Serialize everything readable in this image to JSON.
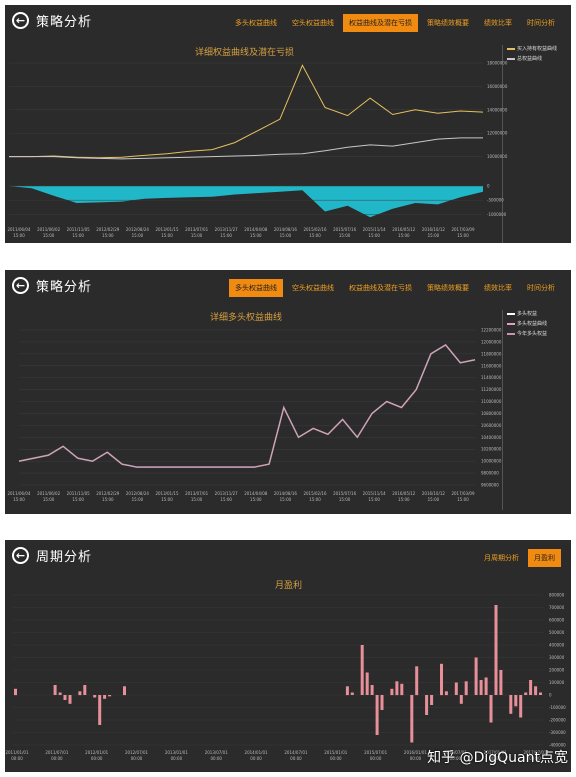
{
  "panel1": {
    "title": "策略分析",
    "tabs": [
      "多头权益曲线",
      "空头权益曲线",
      "权益曲线及潜在亏损",
      "策略绩效概要",
      "绩效比率",
      "时间分析"
    ],
    "active_tab_index": 2,
    "chart_title": "详细权益曲线及潜在亏损",
    "legend": [
      "买入持有权益曲线",
      "总权益曲线"
    ],
    "colors": {
      "line1": "#e8c060",
      "line2": "#c8c8c8",
      "area": "#20b8c8"
    }
  },
  "panel2": {
    "title": "策略分析",
    "tabs": [
      "多头权益曲线",
      "空头权益曲线",
      "权益曲线及潜在亏损",
      "策略绩效概要",
      "绩效比率",
      "时间分析"
    ],
    "active_tab_index": 0,
    "chart_title": "详细多头权益曲线",
    "legend": [
      "多头权益",
      "多头权益曲线",
      "今年多头权益"
    ],
    "colors": {
      "line1": "#e0a0c0",
      "line2": "#d090b0"
    }
  },
  "panel3": {
    "title": "周期分析",
    "tabs": [
      "月周期分析",
      "月盈利"
    ],
    "active_tab_index": 1,
    "chart_title": "月盈利",
    "colors": {
      "bar": "#e8909a"
    }
  },
  "chart_data": [
    {
      "type": "line",
      "title": "详细权益曲线及潜在亏损",
      "x_ticks": [
        "2011/06/04 15:00",
        "2011/06/02 15:00",
        "2011/11/05 15:00",
        "2012/02/29 15:00",
        "2012/08/24 15:00",
        "2013/01/15 15:00",
        "2013/07/01 15:00",
        "2013/11/27 15:00",
        "2014/04/08 15:00",
        "2014/08/16 15:00",
        "2015/02/16 15:00",
        "2015/07/16 15:00",
        "2015/11/14 15:00",
        "2016/05/12 15:00",
        "2016/10/12 15:00",
        "2017/03/09 15:00"
      ],
      "y_ticks": [
        "18000000",
        "16000000",
        "14000000",
        "12000000",
        "10000000",
        "0",
        "-500000",
        "-1000000"
      ],
      "series": [
        {
          "name": "买入持有权益曲线",
          "values": [
            10000000,
            10000000,
            10050000,
            9950000,
            9900000,
            9950000,
            10100000,
            10250000,
            10450000,
            10600000,
            11200000,
            12200000,
            13200000,
            17800000,
            14200000,
            13500000,
            15000000,
            13600000,
            14000000,
            13700000,
            13900000,
            13800000
          ]
        },
        {
          "name": "总权益曲线",
          "values": [
            10000000,
            10000000,
            10000000,
            9900000,
            9850000,
            9800000,
            9850000,
            9900000,
            9950000,
            10000000,
            10050000,
            10100000,
            10200000,
            10250000,
            10500000,
            10800000,
            11000000,
            10900000,
            11200000,
            11500000,
            11600000,
            11600000
          ]
        }
      ],
      "drawdown": [
        0,
        -80000,
        -350000,
        -600000,
        -580000,
        -550000,
        -450000,
        -420000,
        -400000,
        -380000,
        -300000,
        -250000,
        -200000,
        -150000,
        -900000,
        -700000,
        -1100000,
        -800000,
        -600000,
        -650000,
        -400000,
        -200000
      ]
    },
    {
      "type": "line",
      "title": "详细多头权益曲线",
      "x_ticks": [
        "2011/06/04 15:00",
        "2011/06/02 15:00",
        "2011/11/05 15:00",
        "2012/02/29 15:00",
        "2012/08/24 15:00",
        "2013/01/15 15:00",
        "2013/07/01 15:00",
        "2013/11/27 15:00",
        "2014/04/08 15:00",
        "2014/08/16 15:00",
        "2015/02/16 15:00",
        "2015/07/16 15:00",
        "2015/11/14 15:00",
        "2016/05/12 15:00",
        "2016/10/12 15:00",
        "2017/03/09 15:00"
      ],
      "y_ticks": [
        "12200000",
        "12000000",
        "11800000",
        "11600000",
        "11400000",
        "11200000",
        "11000000",
        "10800000",
        "10600000",
        "10400000",
        "10200000",
        "10000000",
        "9800000",
        "9600000"
      ],
      "series": [
        {
          "name": "多头权益曲线",
          "values": [
            10000000,
            10050000,
            10100000,
            10250000,
            10050000,
            10000000,
            10150000,
            9950000,
            9900000,
            9900000,
            9900000,
            9900000,
            9900000,
            9900000,
            9900000,
            9900000,
            9900000,
            9950000,
            10900000,
            10400000,
            10550000,
            10450000,
            10700000,
            10400000,
            10800000,
            11000000,
            10900000,
            11200000,
            11800000,
            11950000,
            11650000,
            11700000
          ]
        }
      ]
    },
    {
      "type": "bar",
      "title": "月盈利",
      "x_ticks": [
        "2011/01/01 00:00",
        "2011/07/01 00:00",
        "2012/01/01 00:00",
        "2012/07/01 00:00",
        "2013/01/01 00:00",
        "2013/07/01 00:00",
        "2014/01/01 00:00",
        "2014/07/01 00:00",
        "2015/01/01 00:00",
        "2015/07/01 00:00",
        "2016/01/01 00:00",
        "2016/07/01 00:00",
        "2017/01/01 00:00",
        "2017/07/01 00:00"
      ],
      "y_ticks": [
        "800000",
        "700000",
        "600000",
        "500000",
        "400000",
        "300000",
        "200000",
        "100000",
        "0",
        "-100000",
        "-200000",
        "-300000",
        "-400000"
      ],
      "values": [
        50000,
        0,
        0,
        0,
        0,
        0,
        0,
        0,
        80000,
        20000,
        -40000,
        -70000,
        0,
        30000,
        80000,
        0,
        -20000,
        -240000,
        -30000,
        -10000,
        0,
        0,
        70000,
        0,
        0,
        0,
        0,
        0,
        0,
        0,
        0,
        0,
        0,
        0,
        0,
        0,
        0,
        0,
        0,
        0,
        0,
        0,
        0,
        0,
        0,
        0,
        0,
        0,
        0,
        0,
        0,
        0,
        0,
        0,
        0,
        0,
        0,
        0,
        0,
        0,
        0,
        0,
        0,
        0,
        0,
        0,
        0,
        70000,
        20000,
        0,
        400000,
        180000,
        80000,
        -320000,
        -120000,
        0,
        50000,
        110000,
        90000,
        0,
        -380000,
        230000,
        0,
        -160000,
        -80000,
        0,
        250000,
        30000,
        0,
        100000,
        -70000,
        110000,
        0,
        300000,
        120000,
        140000,
        -220000,
        720000,
        200000,
        0,
        -150000,
        -90000,
        -180000,
        20000,
        120000,
        70000,
        20000
      ]
    }
  ],
  "watermark": "知乎 @DigQuant点宽"
}
